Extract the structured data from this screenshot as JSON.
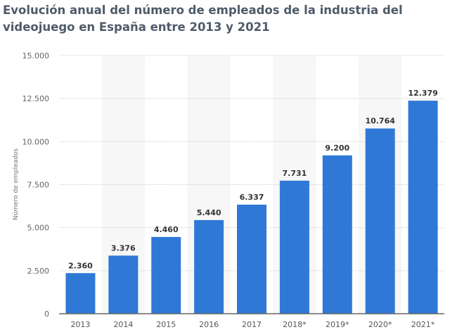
{
  "chart_data": {
    "type": "bar",
    "title": "Evolución anual del número de empleados de la industria del videojuego en España entre 2013 y 2021",
    "ylabel": "Número de empleados",
    "xlabel": "",
    "categories": [
      "2013",
      "2014",
      "2015",
      "2016",
      "2017",
      "2018*",
      "2019*",
      "2020*",
      "2021*"
    ],
    "values": [
      2360,
      3376,
      4460,
      5440,
      6337,
      7731,
      9200,
      10764,
      12379
    ],
    "value_labels": [
      "2.360",
      "3.376",
      "4.460",
      "5.440",
      "6.337",
      "7.731",
      "9.200",
      "10.764",
      "12.379"
    ],
    "ylim": [
      0,
      15000
    ],
    "yticks": [
      0,
      2500,
      5000,
      7500,
      10000,
      12500,
      15000
    ],
    "ytick_labels": [
      "0",
      "2.500",
      "5.000",
      "7.500",
      "10.000",
      "12.500",
      "15.000"
    ],
    "grid": true,
    "bar_color": "#2f78d6"
  }
}
